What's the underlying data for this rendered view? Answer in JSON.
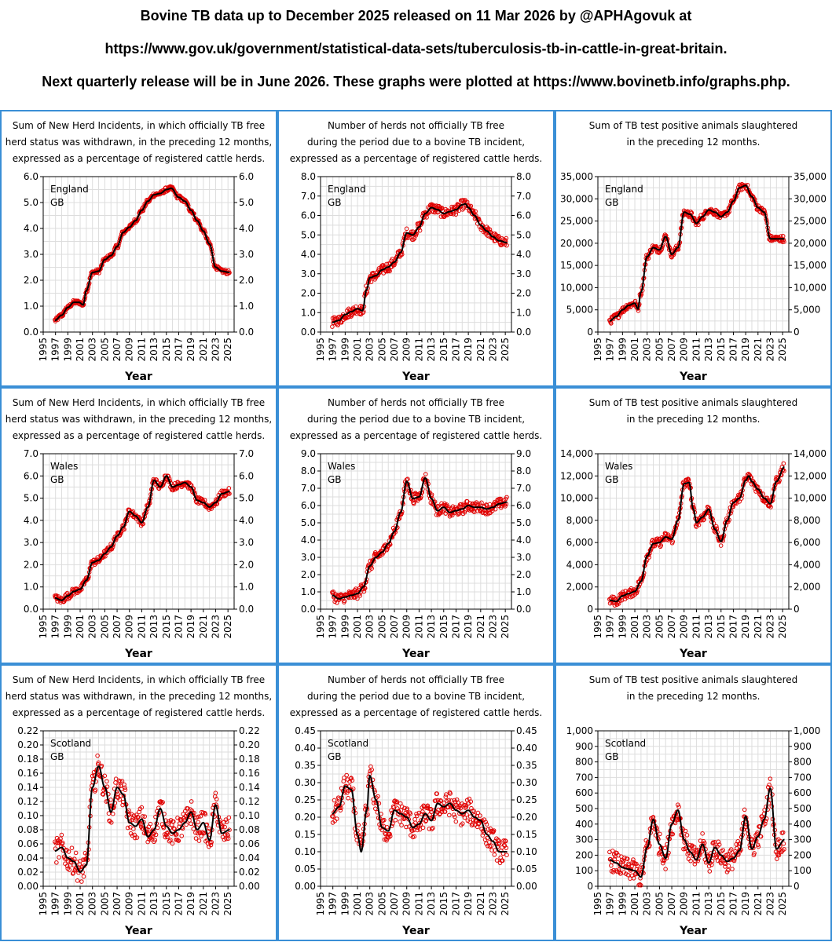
{
  "header": {
    "line1": "Bovine TB data up to December 2025 released on 11 Mar 2026 by @APHAgovuk at",
    "line2": "https://www.gov.uk/government/statistical-data-sets/tuberculosis-tb-in-cattle-in-great-britain.",
    "line3": "Next quarterly release will be in June 2026. These graphs were plotted at https://www.bovinetb.info/graphs.php."
  },
  "colors": {
    "border": "#3a8fd6",
    "points": "#e00000",
    "trend": "#000000",
    "grid": "#dddddd"
  },
  "chart_data": [
    {
      "type": "scatter",
      "region": "England",
      "country": "GB",
      "title_lines": [
        "Sum of New Herd Incidents, in which officially TB free",
        "herd status was withdrawn, in the preceding 12 months,",
        "expressed as a percentage of registered cattle herds."
      ],
      "xlabel": "Year",
      "xlim": [
        1995,
        2026
      ],
      "xticks": [
        "1995",
        "1997",
        "1999",
        "2001",
        "2003",
        "2005",
        "2007",
        "2009",
        "2011",
        "2013",
        "2015",
        "2017",
        "2019",
        "2021",
        "2023",
        "2025"
      ],
      "ylim": [
        0,
        6
      ],
      "ystep": 1,
      "yticks": [
        "0.0",
        "1.0",
        "2.0",
        "3.0",
        "4.0",
        "5.0",
        "6.0"
      ],
      "trend": {
        "x": [
          1996.9,
          1998,
          1999,
          2000,
          2000.8,
          2001.5,
          2002,
          2003,
          2004,
          2005,
          2006,
          2007,
          2008,
          2009,
          2010,
          2011,
          2012,
          2013,
          2014,
          2015,
          2015.8,
          2017,
          2018,
          2019,
          2020,
          2021,
          2022,
          2023,
          2024,
          2025.3
        ],
        "y": [
          0.45,
          0.65,
          0.95,
          1.15,
          1.15,
          1.05,
          1.6,
          2.3,
          2.35,
          2.8,
          2.95,
          3.3,
          3.85,
          4.05,
          4.3,
          4.7,
          5.05,
          5.3,
          5.35,
          5.5,
          5.55,
          5.2,
          5.05,
          4.7,
          4.3,
          3.9,
          3.4,
          2.5,
          2.35,
          2.3
        ]
      },
      "point_noise": 0.08
    },
    {
      "type": "scatter",
      "region": "England",
      "country": "GB",
      "title_lines": [
        "Number of herds not officially TB free",
        "during the period due to a bovine TB incident,",
        "expressed as a percentage of registered cattle herds."
      ],
      "xlabel": "Year",
      "xlim": [
        1995,
        2026
      ],
      "xticks": [
        "1995",
        "1997",
        "1999",
        "2001",
        "2003",
        "2005",
        "2007",
        "2009",
        "2011",
        "2013",
        "2015",
        "2017",
        "2019",
        "2021",
        "2023",
        "2025"
      ],
      "ylim": [
        0,
        8
      ],
      "ystep": 1,
      "yticks": [
        "0.0",
        "1.0",
        "2.0",
        "3.0",
        "4.0",
        "5.0",
        "6.0",
        "7.0",
        "8.0"
      ],
      "trend": {
        "x": [
          1996.9,
          1998,
          1999,
          2000,
          2001,
          2001.8,
          2002.5,
          2003,
          2004,
          2005,
          2006,
          2007,
          2008,
          2009,
          2010,
          2011,
          2012,
          2013,
          2014,
          2015,
          2016,
          2017,
          2018,
          2018.5,
          2019,
          2020,
          2021,
          2022,
          2023,
          2024,
          2025.3
        ],
        "y": [
          0.5,
          0.6,
          0.9,
          1.05,
          1.2,
          1.1,
          2.2,
          2.8,
          2.9,
          3.2,
          3.35,
          3.6,
          4.1,
          5.1,
          5.0,
          5.4,
          6.1,
          6.4,
          6.3,
          6.1,
          6.2,
          6.3,
          6.55,
          6.6,
          6.4,
          6.0,
          5.5,
          5.2,
          4.9,
          4.7,
          4.6
        ]
      },
      "point_noise": 0.25
    },
    {
      "type": "scatter",
      "region": "England",
      "country": "GB",
      "title_lines": [
        "Sum of TB test positive animals slaughtered",
        "in the preceding 12 months."
      ],
      "xlabel": "Year",
      "xlim": [
        1995,
        2026
      ],
      "xticks": [
        "1995",
        "1997",
        "1999",
        "2001",
        "2003",
        "2005",
        "2007",
        "2009",
        "2011",
        "2013",
        "2015",
        "2017",
        "2019",
        "2021",
        "2023",
        "2025"
      ],
      "ylim": [
        0,
        35000
      ],
      "ystep": 5000,
      "yticks": [
        "0",
        "5,000",
        "10,000",
        "15,000",
        "20,000",
        "25,000",
        "30,000",
        "35,000"
      ],
      "trend": {
        "x": [
          1996.9,
          1998,
          1999,
          2000,
          2001,
          2001.5,
          2002,
          2003,
          2004,
          2005,
          2006,
          2007,
          2008,
          2009,
          2010,
          2011,
          2012,
          2013,
          2014,
          2015,
          2016,
          2017,
          2018,
          2019,
          2020,
          2021,
          2022,
          2023,
          2024,
          2025.3
        ],
        "y": [
          2500,
          3500,
          5000,
          6000,
          6500,
          5200,
          9000,
          17000,
          19000,
          18500,
          21500,
          17500,
          19000,
          27000,
          26500,
          24500,
          26000,
          27500,
          27000,
          26000,
          27000,
          29500,
          32500,
          33000,
          30500,
          28000,
          27000,
          21000,
          21000,
          21000
        ]
      },
      "point_noise": 700
    },
    {
      "type": "scatter",
      "region": "Wales",
      "country": "GB",
      "title_lines": [
        "Sum of New Herd Incidents, in which officially TB free",
        "herd status was withdrawn, in the preceding 12 months,",
        "expressed as a percentage of registered cattle herds."
      ],
      "xlabel": "Year",
      "xlim": [
        1995,
        2026
      ],
      "xticks": [
        "1995",
        "1997",
        "1999",
        "2001",
        "2003",
        "2005",
        "2007",
        "2009",
        "2011",
        "2013",
        "2015",
        "2017",
        "2019",
        "2021",
        "2023",
        "2025"
      ],
      "ylim": [
        0,
        7
      ],
      "ystep": 1,
      "yticks": [
        "0.0",
        "1.0",
        "2.0",
        "3.0",
        "4.0",
        "5.0",
        "6.0",
        "7.0"
      ],
      "trend": {
        "x": [
          1996.9,
          1998,
          1999,
          2000,
          2001,
          2002,
          2003,
          2004,
          2005,
          2006,
          2007,
          2008,
          2009,
          2010,
          2011,
          2012,
          2013,
          2014,
          2015,
          2016,
          2017,
          2018,
          2019,
          2020,
          2021,
          2022,
          2023,
          2024,
          2025.3
        ],
        "y": [
          0.5,
          0.4,
          0.6,
          0.8,
          0.9,
          1.3,
          2.1,
          2.2,
          2.5,
          2.8,
          3.3,
          3.7,
          4.4,
          4.2,
          3.9,
          4.6,
          5.8,
          5.5,
          6.0,
          5.5,
          5.6,
          5.7,
          5.5,
          4.9,
          4.8,
          4.6,
          4.8,
          5.2,
          5.3
        ]
      },
      "point_noise": 0.15
    },
    {
      "type": "scatter",
      "region": "Wales",
      "country": "GB",
      "title_lines": [
        "Number of herds not officially TB free",
        "during the period due to a bovine TB incident,",
        "expressed as a percentage of registered cattle herds."
      ],
      "xlabel": "Year",
      "xlim": [
        1995,
        2026
      ],
      "xticks": [
        "1995",
        "1997",
        "1999",
        "2001",
        "2003",
        "2005",
        "2007",
        "2009",
        "2011",
        "2013",
        "2015",
        "2017",
        "2019",
        "2021",
        "2023",
        "2025"
      ],
      "ylim": [
        0,
        9
      ],
      "ystep": 1,
      "yticks": [
        "0.0",
        "1.0",
        "2.0",
        "3.0",
        "4.0",
        "5.0",
        "6.0",
        "7.0",
        "8.0",
        "9.0"
      ],
      "trend": {
        "x": [
          1996.9,
          1998,
          1999,
          2000,
          2001,
          2002,
          2003,
          2004,
          2005,
          2006,
          2007,
          2008,
          2009,
          2010,
          2011,
          2012,
          2013,
          2014,
          2015,
          2016,
          2017,
          2018,
          2019,
          2020,
          2021,
          2022,
          2023,
          2024,
          2025.3
        ],
        "y": [
          0.8,
          0.6,
          0.7,
          0.8,
          0.9,
          1.3,
          2.5,
          3.0,
          3.3,
          3.8,
          4.5,
          5.6,
          7.4,
          6.4,
          6.5,
          7.6,
          6.4,
          5.7,
          5.9,
          5.6,
          5.7,
          5.8,
          6.0,
          5.9,
          5.9,
          5.8,
          5.9,
          6.1,
          6.2
        ]
      },
      "point_noise": 0.3
    },
    {
      "type": "scatter",
      "region": "Wales",
      "country": "GB",
      "title_lines": [
        "Sum of TB test positive animals slaughtered",
        "in the preceding 12 months."
      ],
      "xlabel": "Year",
      "xlim": [
        1995,
        2026
      ],
      "xticks": [
        "1995",
        "1997",
        "1999",
        "2001",
        "2003",
        "2005",
        "2007",
        "2009",
        "2011",
        "2013",
        "2015",
        "2017",
        "2019",
        "2021",
        "2023",
        "2025"
      ],
      "ylim": [
        0,
        14000
      ],
      "ystep": 2000,
      "yticks": [
        "0",
        "2,000",
        "4,000",
        "6,000",
        "8,000",
        "10,000",
        "12,000",
        "14,000"
      ],
      "trend": {
        "x": [
          1996.9,
          1998,
          1999,
          2000,
          2001,
          2002,
          2003,
          2004,
          2005,
          2006,
          2007,
          2008,
          2009,
          2009.8,
          2010.5,
          2011,
          2012,
          2013,
          2014,
          2015,
          2016,
          2017,
          2018,
          2019,
          2019.5,
          2020,
          2021,
          2022,
          2023,
          2024,
          2025.3
        ],
        "y": [
          800,
          700,
          1200,
          1400,
          1600,
          2500,
          4800,
          5900,
          6000,
          6500,
          6300,
          8000,
          11300,
          11400,
          9000,
          7800,
          8300,
          9000,
          7200,
          6100,
          8000,
          9600,
          10000,
          11600,
          12000,
          11500,
          10800,
          10000,
          9500,
          11500,
          12800
        ]
      },
      "point_noise": 400
    },
    {
      "type": "scatter",
      "region": "Scotland",
      "country": "GB",
      "title_lines": [
        "Sum of New Herd Incidents, in which officially TB free",
        "herd status was withdrawn, in the preceding 12 months,",
        "expressed as a percentage of registered cattle herds."
      ],
      "xlabel": "Year",
      "xlim": [
        1995,
        2026
      ],
      "xticks": [
        "1995",
        "1997",
        "1999",
        "2001",
        "2003",
        "2005",
        "2007",
        "2009",
        "2011",
        "2013",
        "2015",
        "2017",
        "2019",
        "2021",
        "2023",
        "2025"
      ],
      "ylim": [
        0,
        0.22
      ],
      "ystep": 0.02,
      "yticks": [
        "0.00",
        "0.02",
        "0.04",
        "0.06",
        "0.08",
        "0.10",
        "0.12",
        "0.14",
        "0.16",
        "0.18",
        "0.20",
        "0.22"
      ],
      "trend": {
        "x": [
          1996.9,
          1998,
          1999,
          2000,
          2001,
          2002,
          2003,
          2004,
          2005,
          2006,
          2007,
          2008,
          2009,
          2010,
          2011,
          2012,
          2013,
          2014,
          2015,
          2016,
          2017,
          2018,
          2019,
          2020,
          2021,
          2022,
          2023,
          2024,
          2025.3
        ],
        "y": [
          0.05,
          0.055,
          0.04,
          0.035,
          0.02,
          0.03,
          0.14,
          0.17,
          0.14,
          0.105,
          0.14,
          0.13,
          0.09,
          0.085,
          0.095,
          0.07,
          0.08,
          0.11,
          0.085,
          0.075,
          0.08,
          0.09,
          0.105,
          0.08,
          0.09,
          0.065,
          0.115,
          0.075,
          0.08
        ]
      },
      "point_noise": 0.018
    },
    {
      "type": "scatter",
      "region": "Scotland",
      "country": "GB",
      "title_lines": [
        "Number of herds not officially TB free",
        "during the period due to a bovine TB incident,",
        "expressed as a percentage of registered cattle herds."
      ],
      "xlabel": "Year",
      "xlim": [
        1995,
        2026
      ],
      "xticks": [
        "1995",
        "1997",
        "1999",
        "2001",
        "2003",
        "2005",
        "2007",
        "2009",
        "2011",
        "2013",
        "2015",
        "2017",
        "2019",
        "2021",
        "2023",
        "2025"
      ],
      "ylim": [
        0,
        0.45
      ],
      "ystep": 0.05,
      "yticks": [
        "0.00",
        "0.05",
        "0.10",
        "0.15",
        "0.20",
        "0.25",
        "0.30",
        "0.35",
        "0.40",
        "0.45"
      ],
      "trend": {
        "x": [
          1996.9,
          1998,
          1999,
          2000,
          2001,
          2001.6,
          2002.5,
          2003,
          2004,
          2005,
          2006,
          2007,
          2008,
          2009,
          2010,
          2011,
          2012,
          2013,
          2014,
          2015,
          2016,
          2017,
          2018,
          2019,
          2020,
          2021,
          2022,
          2023,
          2024,
          2025.3
        ],
        "y": [
          0.21,
          0.23,
          0.29,
          0.28,
          0.15,
          0.1,
          0.22,
          0.32,
          0.25,
          0.17,
          0.16,
          0.22,
          0.21,
          0.2,
          0.17,
          0.18,
          0.21,
          0.19,
          0.24,
          0.23,
          0.24,
          0.22,
          0.21,
          0.22,
          0.2,
          0.19,
          0.15,
          0.13,
          0.1,
          0.1
        ]
      },
      "point_noise": 0.035
    },
    {
      "type": "scatter",
      "region": "Scotland",
      "country": "GB",
      "title_lines": [
        "Sum of TB test positive animals slaughtered",
        "in the preceding 12 months."
      ],
      "xlabel": "Year",
      "xlim": [
        1995,
        2026
      ],
      "xticks": [
        "1995",
        "1997",
        "1999",
        "2001",
        "2003",
        "2005",
        "2007",
        "2009",
        "2011",
        "2013",
        "2015",
        "2017",
        "2019",
        "2021",
        "2023",
        "2025"
      ],
      "ylim": [
        0,
        1000
      ],
      "ystep": 100,
      "yticks": [
        "0",
        "100",
        "200",
        "300",
        "400",
        "500",
        "600",
        "700",
        "800",
        "900",
        "1,000"
      ],
      "trend": {
        "x": [
          1996.9,
          1998,
          1999,
          2000,
          2001,
          2002,
          2003,
          2004,
          2005,
          2006,
          2007,
          2008,
          2009,
          2010,
          2011,
          2012,
          2013,
          2014,
          2015,
          2016,
          2017,
          2018,
          2019,
          2020,
          2021,
          2022,
          2023,
          2024,
          2025.3
        ],
        "y": [
          170,
          150,
          120,
          110,
          100,
          60,
          250,
          430,
          270,
          180,
          400,
          490,
          300,
          220,
          170,
          270,
          150,
          250,
          200,
          160,
          180,
          230,
          450,
          240,
          320,
          430,
          630,
          240,
          300
        ]
      },
      "point_noise": 70
    }
  ]
}
